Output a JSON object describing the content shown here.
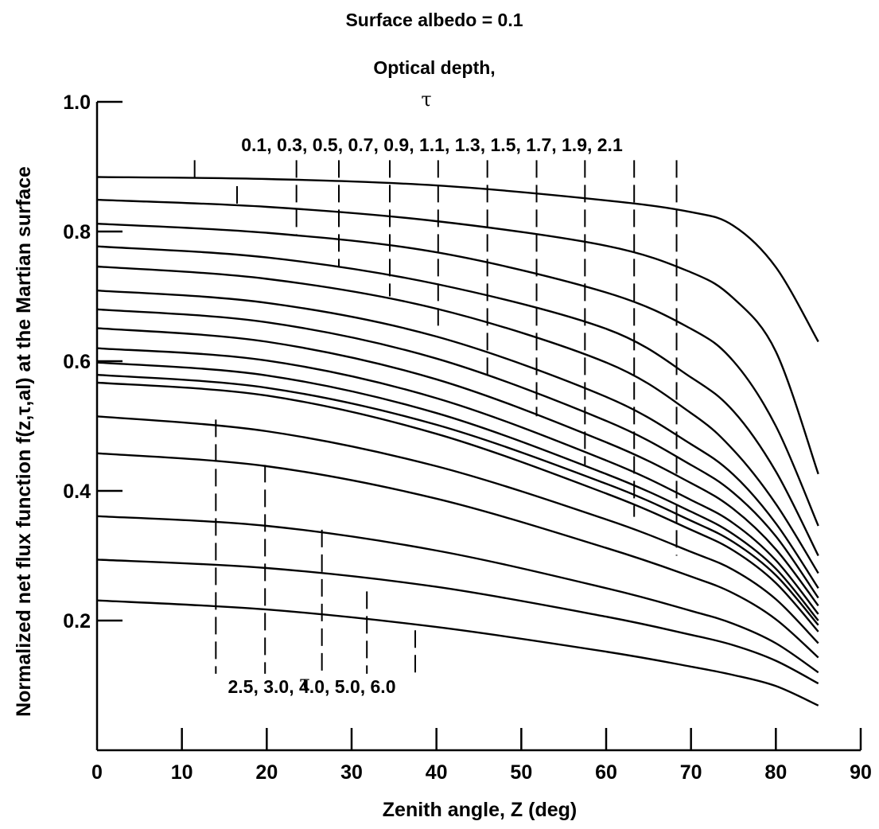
{
  "chart_data": {
    "type": "line",
    "title": "Surface albedo = 0.1",
    "subtitle": "Optical depth,",
    "tau_symbol": "τ",
    "xlabel": "Zenith angle, Z (deg)",
    "ylabel": "Normalized net flux function f(z,τ,al) at the Martian surface",
    "xlim": [
      0,
      90
    ],
    "ylim": [
      0.0,
      1.0
    ],
    "x_ticks": [
      "0",
      "10",
      "20",
      "30",
      "40",
      "50",
      "60",
      "70",
      "80",
      "90"
    ],
    "y_ticks": [
      "0.2",
      "0.4",
      "0.6",
      "0.8",
      "1.0"
    ],
    "upper_label": "0.1, 0.3, 0.5, 0.7, 0.9, 1.1, 1.3, 1.5, 1.7, 1.9, 2.1",
    "lower_label": "2.5, 3.0, 4.0, 5.0, 6.0",
    "grid": false,
    "series": [
      {
        "name": "0.1",
        "x": [
          0,
          20,
          40,
          60,
          70,
          75,
          80,
          85
        ],
        "y": [
          0.884,
          0.881,
          0.871,
          0.848,
          0.83,
          0.809,
          0.745,
          0.63
        ]
      },
      {
        "name": "0.3",
        "x": [
          0,
          20,
          40,
          60,
          70,
          75,
          80,
          85
        ],
        "y": [
          0.849,
          0.838,
          0.816,
          0.778,
          0.737,
          0.697,
          0.615,
          0.426
        ]
      },
      {
        "name": "0.5",
        "x": [
          0,
          20,
          40,
          60,
          70,
          75,
          80,
          85
        ],
        "y": [
          0.812,
          0.798,
          0.768,
          0.706,
          0.65,
          0.6,
          0.5,
          0.346
        ]
      },
      {
        "name": "0.7",
        "x": [
          0,
          20,
          40,
          60,
          70,
          75,
          80,
          85
        ],
        "y": [
          0.777,
          0.76,
          0.719,
          0.65,
          0.575,
          0.523,
          0.43,
          0.3
        ]
      },
      {
        "name": "0.9",
        "x": [
          0,
          20,
          40,
          60,
          70,
          75,
          80,
          85
        ],
        "y": [
          0.746,
          0.727,
          0.681,
          0.598,
          0.52,
          0.463,
          0.38,
          0.273
        ]
      },
      {
        "name": "1.1",
        "x": [
          0,
          20,
          40,
          60,
          70,
          75,
          80,
          85
        ],
        "y": [
          0.709,
          0.69,
          0.638,
          0.545,
          0.472,
          0.425,
          0.35,
          0.25
        ]
      },
      {
        "name": "1.3",
        "x": [
          0,
          20,
          40,
          60,
          70,
          75,
          80,
          85
        ],
        "y": [
          0.68,
          0.66,
          0.604,
          0.508,
          0.44,
          0.397,
          0.33,
          0.235
        ]
      },
      {
        "name": "1.5",
        "x": [
          0,
          20,
          40,
          60,
          70,
          75,
          80,
          85
        ],
        "y": [
          0.651,
          0.63,
          0.572,
          0.475,
          0.412,
          0.372,
          0.31,
          0.223
        ]
      },
      {
        "name": "1.7",
        "x": [
          0,
          20,
          40,
          60,
          70,
          75,
          80,
          85
        ],
        "y": [
          0.62,
          0.601,
          0.543,
          0.447,
          0.386,
          0.35,
          0.293,
          0.21
        ]
      },
      {
        "name": "1.9",
        "x": [
          0,
          20,
          40,
          60,
          70,
          75,
          80,
          85
        ],
        "y": [
          0.598,
          0.578,
          0.52,
          0.426,
          0.368,
          0.333,
          0.28,
          0.2
        ]
      },
      {
        "name": "2.1",
        "x": [
          0,
          20,
          40,
          60,
          70,
          75,
          80,
          85
        ],
        "y": [
          0.579,
          0.559,
          0.502,
          0.411,
          0.354,
          0.321,
          0.27,
          0.193
        ]
      },
      {
        "name": "2.5",
        "x": [
          0,
          20,
          40,
          60,
          70,
          75,
          80,
          85
        ],
        "y": [
          0.567,
          0.547,
          0.488,
          0.396,
          0.34,
          0.308,
          0.258,
          0.183
        ]
      },
      {
        "name": "3.0",
        "x": [
          0,
          20,
          40,
          60,
          70,
          75,
          80,
          85
        ],
        "y": [
          0.515,
          0.492,
          0.438,
          0.356,
          0.306,
          0.278,
          0.233,
          0.165
        ]
      },
      {
        "name": "4.0",
        "x": [
          0,
          20,
          40,
          60,
          70,
          75,
          80,
          85
        ],
        "y": [
          0.458,
          0.438,
          0.388,
          0.312,
          0.268,
          0.242,
          0.202,
          0.143
        ]
      },
      {
        "name": "5.0",
        "x": [
          0,
          20,
          40,
          60,
          70,
          75,
          80,
          85
        ],
        "y": [
          0.361,
          0.346,
          0.308,
          0.25,
          0.215,
          0.195,
          0.165,
          0.12
        ]
      },
      {
        "name": "6.0",
        "x": [
          0,
          20,
          40,
          60,
          70,
          75,
          80,
          85
        ],
        "y": [
          0.294,
          0.281,
          0.252,
          0.206,
          0.178,
          0.162,
          0.138,
          0.103
        ]
      },
      {
        "name": "",
        "x": [
          0,
          20,
          40,
          60,
          70,
          75,
          80,
          85
        ],
        "y": [
          0.231,
          0.217,
          0.19,
          0.152,
          0.129,
          0.116,
          0.099,
          0.069
        ]
      }
    ],
    "upper_markers": [
      {
        "x": 11.5,
        "y_top": 0.91,
        "y_bottom": 0.882
      },
      {
        "x": 16.5,
        "y_top": 0.87,
        "y_bottom": 0.84
      },
      {
        "x": 23.5,
        "y_top": 0.91,
        "y_bottom": 0.795
      },
      {
        "x": 28.5,
        "y_top": 0.91,
        "y_bottom": 0.745
      },
      {
        "x": 34.5,
        "y_top": 0.91,
        "y_bottom": 0.7
      },
      {
        "x": 40.2,
        "y_top": 0.91,
        "y_bottom": 0.645
      },
      {
        "x": 46.0,
        "y_top": 0.91,
        "y_bottom": 0.57
      },
      {
        "x": 51.8,
        "y_top": 0.91,
        "y_bottom": 0.515
      },
      {
        "x": 57.5,
        "y_top": 0.91,
        "y_bottom": 0.44
      },
      {
        "x": 63.3,
        "y_top": 0.91,
        "y_bottom": 0.36
      },
      {
        "x": 68.3,
        "y_top": 0.91,
        "y_bottom": 0.3
      }
    ],
    "lower_markers": [
      {
        "x": 14.0,
        "y_top": 0.51,
        "y_bottom": 0.118
      },
      {
        "x": 19.8,
        "y_top": 0.44,
        "y_bottom": 0.118
      },
      {
        "x": 26.5,
        "y_top": 0.34,
        "y_bottom": 0.118
      },
      {
        "x": 31.8,
        "y_top": 0.245,
        "y_bottom": 0.118
      },
      {
        "x": 37.5,
        "y_top": 0.185,
        "y_bottom": 0.118
      }
    ]
  }
}
